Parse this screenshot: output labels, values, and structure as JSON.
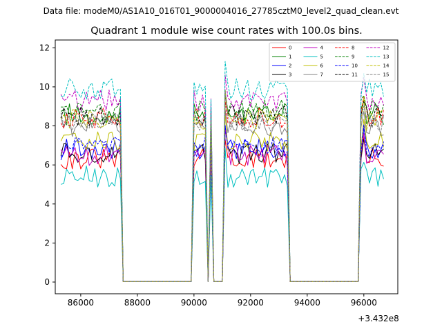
{
  "chart_data": {
    "type": "line",
    "suptitle": "Data file: modeM0/AS1A10_016T01_9000004016_27785cztM0_level2_quad_clean.evt",
    "title": "Quadrant 1 module wise count rates with 100.0s bins.",
    "xlabel": "",
    "ylabel": "",
    "x_offset_label": "+3.432e8",
    "xlim": [
      85100,
      97200
    ],
    "ylim": [
      -0.6,
      12.4
    ],
    "xticks": [
      86000,
      88000,
      90000,
      92000,
      94000,
      96000
    ],
    "yticks": [
      0,
      2,
      4,
      6,
      8,
      10,
      12
    ],
    "grid": false,
    "legend_position": "top-right",
    "legend_columns": 4,
    "segments": [
      {
        "start": 85300,
        "end": 87450
      },
      {
        "start": 90000,
        "end": 90450
      },
      {
        "start": 90550,
        "end": 90600
      },
      {
        "start": 91100,
        "end": 93350
      },
      {
        "start": 95900,
        "end": 96700
      }
    ],
    "off_level": 0.02,
    "series": [
      {
        "name": "0",
        "color": "#ff0000",
        "dash": "solid",
        "level": 6.3
      },
      {
        "name": "1",
        "color": "#008000",
        "dash": "solid",
        "level": 8.6
      },
      {
        "name": "2",
        "color": "#0000ff",
        "dash": "solid",
        "level": 6.8
      },
      {
        "name": "3",
        "color": "#000000",
        "dash": "solid",
        "level": 6.6
      },
      {
        "name": "4",
        "color": "#bf00bf",
        "dash": "solid",
        "level": 6.5
      },
      {
        "name": "5",
        "color": "#00bfbf",
        "dash": "solid",
        "level": 5.4
      },
      {
        "name": "6",
        "color": "#bfbf00",
        "dash": "solid",
        "level": 7.2
      },
      {
        "name": "7",
        "color": "#808080",
        "dash": "solid",
        "level": 8.0
      },
      {
        "name": "8",
        "color": "#ff0000",
        "dash": "dashed",
        "level": 8.4
      },
      {
        "name": "9",
        "color": "#008000",
        "dash": "dashed",
        "level": 8.8
      },
      {
        "name": "10",
        "color": "#0000ff",
        "dash": "dashed",
        "level": 6.9
      },
      {
        "name": "11",
        "color": "#000000",
        "dash": "dashed",
        "level": 8.5
      },
      {
        "name": "12",
        "color": "#bf00bf",
        "dash": "dashed",
        "level": 9.3
      },
      {
        "name": "13",
        "color": "#00bfbf",
        "dash": "dashed",
        "level": 9.9
      },
      {
        "name": "14",
        "color": "#bfbf00",
        "dash": "dashed",
        "level": 8.3
      },
      {
        "name": "15",
        "color": "#808080",
        "dash": "dashed",
        "level": 8.2
      }
    ]
  }
}
